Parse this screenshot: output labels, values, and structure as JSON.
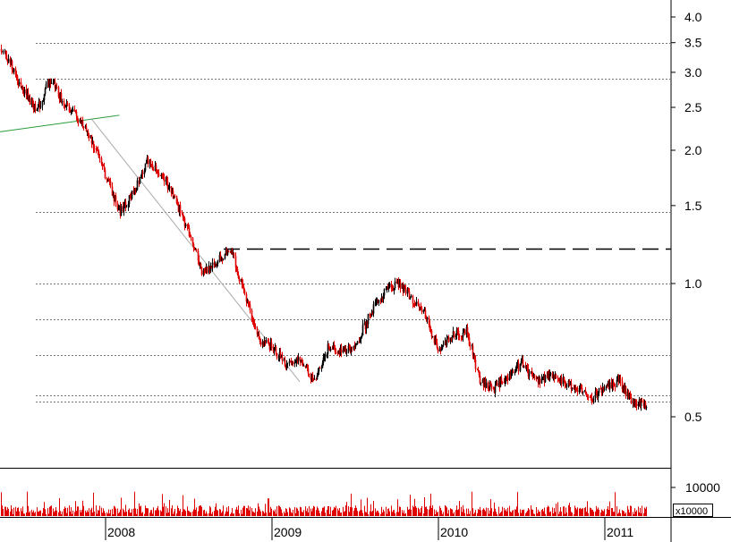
{
  "chart_data": {
    "type": "candlestick",
    "y_scale": "log",
    "price_axis": {
      "ticks": [
        0.5,
        1.0,
        1.5,
        2.0,
        2.5,
        3.0,
        3.5,
        4.0
      ],
      "labels": [
        "0.5",
        "1.0",
        "1.5",
        "2.0",
        "2.5",
        "3.0",
        "3.5",
        "4.0"
      ]
    },
    "time_axis": {
      "start": "2007-03",
      "end": "2011-04",
      "ticks": [
        {
          "date": "2008-01",
          "label": "2008"
        },
        {
          "date": "2009-01",
          "label": "2009"
        },
        {
          "date": "2010-01",
          "label": "2010"
        },
        {
          "date": "2011-01",
          "label": "2011"
        }
      ]
    },
    "volume_axis": {
      "tick_label": "10000",
      "multiplier_label": "x10000"
    },
    "price_path": [
      [
        "2007-03",
        2.65
      ],
      [
        "2007-04",
        3.05
      ],
      [
        "2007-05",
        3.55
      ],
      [
        "2007-06",
        3.2
      ],
      [
        "2007-07",
        2.75
      ],
      [
        "2007-08",
        2.45
      ],
      [
        "2007-09",
        2.9
      ],
      [
        "2007-10",
        2.55
      ],
      [
        "2007-11",
        2.35
      ],
      [
        "2007-12",
        2.1
      ],
      [
        "2008-01",
        1.75
      ],
      [
        "2008-02",
        1.45
      ],
      [
        "2008-03",
        1.6
      ],
      [
        "2008-04",
        1.9
      ],
      [
        "2008-05",
        1.75
      ],
      [
        "2008-06",
        1.55
      ],
      [
        "2008-07",
        1.3
      ],
      [
        "2008-08",
        1.05
      ],
      [
        "2008-09",
        1.12
      ],
      [
        "2008-10",
        1.2
      ],
      [
        "2008-11",
        0.95
      ],
      [
        "2008-12",
        0.75
      ],
      [
        "2009-01",
        0.72
      ],
      [
        "2009-02",
        0.65
      ],
      [
        "2009-03",
        0.68
      ],
      [
        "2009-04",
        0.6
      ],
      [
        "2009-05",
        0.72
      ],
      [
        "2009-06",
        0.7
      ],
      [
        "2009-07",
        0.72
      ],
      [
        "2009-08",
        0.85
      ],
      [
        "2009-09",
        0.95
      ],
      [
        "2009-10",
        1.0
      ],
      [
        "2009-11",
        0.93
      ],
      [
        "2009-12",
        0.85
      ],
      [
        "2010-01",
        0.7
      ],
      [
        "2010-02",
        0.76
      ],
      [
        "2010-03",
        0.78
      ],
      [
        "2010-04",
        0.6
      ],
      [
        "2010-05",
        0.58
      ],
      [
        "2010-06",
        0.62
      ],
      [
        "2010-07",
        0.66
      ],
      [
        "2010-08",
        0.6
      ],
      [
        "2010-09",
        0.62
      ],
      [
        "2010-10",
        0.6
      ],
      [
        "2010-11",
        0.58
      ],
      [
        "2010-12",
        0.55
      ],
      [
        "2011-01",
        0.58
      ],
      [
        "2011-02",
        0.6
      ],
      [
        "2011-03",
        0.54
      ],
      [
        "2011-04",
        0.53
      ]
    ],
    "horizontal_levels": [
      {
        "value": 3.5,
        "style": "dotted"
      },
      {
        "value": 2.9,
        "style": "dotted"
      },
      {
        "value": 1.45,
        "style": "dotted"
      },
      {
        "value": 1.2,
        "style": "dashed"
      },
      {
        "value": 1.0,
        "style": "dotted"
      },
      {
        "value": 0.83,
        "style": "dotted"
      },
      {
        "value": 0.69,
        "style": "dotted"
      },
      {
        "value": 0.56,
        "style": "dotted"
      },
      {
        "value": 0.54,
        "style": "dotted"
      }
    ],
    "trendlines": [
      {
        "from": [
          "2007-03",
          2.15
        ],
        "to": [
          "2008-02",
          2.4
        ],
        "color": "#2a9a3a"
      },
      {
        "from": [
          "2007-12",
          2.35
        ],
        "to": [
          "2009-03",
          0.6
        ],
        "color": "#aaaaaa"
      }
    ],
    "grid": false,
    "colors": {
      "up_candle": "#000000",
      "down_candle": "#e00000",
      "volume": "#e00000",
      "support_green": "#2a9a3a"
    }
  }
}
